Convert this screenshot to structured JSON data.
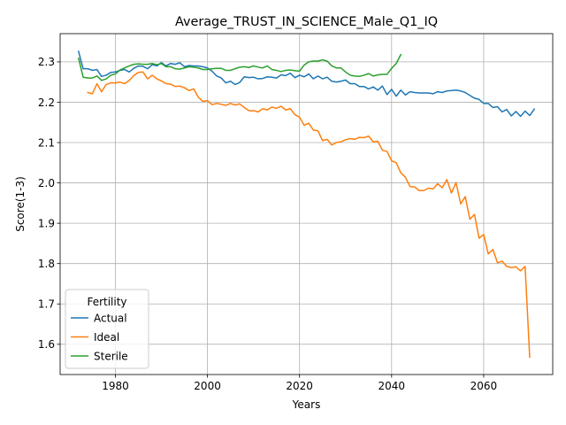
{
  "chart_data": {
    "type": "line",
    "title": "Average_TRUST_IN_SCIENCE_Male_Q1_IQ",
    "xlabel": "Years",
    "ylabel": "Score(1-3)",
    "xlim": [
      1968,
      2075
    ],
    "ylim": [
      1.525,
      2.37
    ],
    "xticks": [
      1980,
      2000,
      2020,
      2040,
      2060
    ],
    "yticks": [
      1.6,
      1.7,
      1.8,
      1.9,
      2.0,
      2.1,
      2.2,
      2.3
    ],
    "grid": true,
    "legend": {
      "title": "Fertility",
      "placement": "lower-left"
    },
    "series": [
      {
        "name": "Actual",
        "color": "#1f77b4",
        "points": [
          [
            1972,
            2.326
          ],
          [
            1973,
            2.283
          ],
          [
            1974,
            2.283
          ],
          [
            1975,
            2.279
          ],
          [
            1976,
            2.281
          ],
          [
            1977,
            2.264
          ],
          [
            1978,
            2.267
          ],
          [
            1979,
            2.274
          ],
          [
            1980,
            2.275
          ],
          [
            1981,
            2.279
          ],
          [
            1982,
            2.281
          ],
          [
            1983,
            2.275
          ],
          [
            1984,
            2.284
          ],
          [
            1985,
            2.29
          ],
          [
            1986,
            2.289
          ],
          [
            1987,
            2.283
          ],
          [
            1988,
            2.293
          ],
          [
            1989,
            2.29
          ],
          [
            1990,
            2.298
          ],
          [
            1991,
            2.29
          ],
          [
            1992,
            2.296
          ],
          [
            1993,
            2.294
          ],
          [
            1994,
            2.298
          ],
          [
            1995,
            2.288
          ],
          [
            1996,
            2.291
          ],
          [
            1997,
            2.29
          ],
          [
            1998,
            2.29
          ],
          [
            1999,
            2.288
          ],
          [
            2000,
            2.285
          ],
          [
            2001,
            2.277
          ],
          [
            2002,
            2.265
          ],
          [
            2003,
            2.26
          ],
          [
            2004,
            2.248
          ],
          [
            2005,
            2.252
          ],
          [
            2006,
            2.244
          ],
          [
            2007,
            2.249
          ],
          [
            2008,
            2.263
          ],
          [
            2009,
            2.261
          ],
          [
            2010,
            2.262
          ],
          [
            2011,
            2.258
          ],
          [
            2012,
            2.259
          ],
          [
            2013,
            2.263
          ],
          [
            2014,
            2.262
          ],
          [
            2015,
            2.26
          ],
          [
            2016,
            2.268
          ],
          [
            2017,
            2.266
          ],
          [
            2018,
            2.272
          ],
          [
            2019,
            2.261
          ],
          [
            2020,
            2.267
          ],
          [
            2021,
            2.263
          ],
          [
            2022,
            2.27
          ],
          [
            2023,
            2.258
          ],
          [
            2024,
            2.265
          ],
          [
            2025,
            2.258
          ],
          [
            2026,
            2.262
          ],
          [
            2027,
            2.252
          ],
          [
            2028,
            2.25
          ],
          [
            2029,
            2.252
          ],
          [
            2030,
            2.255
          ],
          [
            2031,
            2.246
          ],
          [
            2032,
            2.246
          ],
          [
            2033,
            2.239
          ],
          [
            2034,
            2.239
          ],
          [
            2035,
            2.233
          ],
          [
            2036,
            2.238
          ],
          [
            2037,
            2.23
          ],
          [
            2038,
            2.24
          ],
          [
            2039,
            2.219
          ],
          [
            2040,
            2.232
          ],
          [
            2041,
            2.215
          ],
          [
            2042,
            2.23
          ],
          [
            2043,
            2.218
          ],
          [
            2044,
            2.226
          ],
          [
            2045,
            2.224
          ],
          [
            2046,
            2.223
          ],
          [
            2047,
            2.223
          ],
          [
            2048,
            2.223
          ],
          [
            2049,
            2.221
          ],
          [
            2050,
            2.226
          ],
          [
            2051,
            2.224
          ],
          [
            2052,
            2.228
          ],
          [
            2053,
            2.229
          ],
          [
            2054,
            2.23
          ],
          [
            2055,
            2.228
          ],
          [
            2056,
            2.224
          ],
          [
            2057,
            2.217
          ],
          [
            2058,
            2.21
          ],
          [
            2059,
            2.207
          ],
          [
            2060,
            2.197
          ],
          [
            2061,
            2.197
          ],
          [
            2062,
            2.187
          ],
          [
            2063,
            2.189
          ],
          [
            2064,
            2.176
          ],
          [
            2065,
            2.182
          ],
          [
            2066,
            2.166
          ],
          [
            2067,
            2.177
          ],
          [
            2068,
            2.165
          ],
          [
            2069,
            2.178
          ],
          [
            2070,
            2.167
          ],
          [
            2071,
            2.183
          ]
        ]
      },
      {
        "name": "Ideal",
        "color": "#ff7f0e",
        "points": [
          [
            1974,
            2.224
          ],
          [
            1975,
            2.221
          ],
          [
            1976,
            2.246
          ],
          [
            1977,
            2.226
          ],
          [
            1978,
            2.244
          ],
          [
            1979,
            2.248
          ],
          [
            1980,
            2.248
          ],
          [
            1981,
            2.25
          ],
          [
            1982,
            2.246
          ],
          [
            1983,
            2.254
          ],
          [
            1984,
            2.266
          ],
          [
            1985,
            2.274
          ],
          [
            1986,
            2.275
          ],
          [
            1987,
            2.258
          ],
          [
            1988,
            2.267
          ],
          [
            1989,
            2.258
          ],
          [
            1990,
            2.253
          ],
          [
            1991,
            2.246
          ],
          [
            1992,
            2.245
          ],
          [
            1993,
            2.239
          ],
          [
            1994,
            2.24
          ],
          [
            1995,
            2.236
          ],
          [
            1996,
            2.229
          ],
          [
            1997,
            2.233
          ],
          [
            1998,
            2.213
          ],
          [
            1999,
            2.202
          ],
          [
            2000,
            2.204
          ],
          [
            2001,
            2.194
          ],
          [
            2002,
            2.197
          ],
          [
            2003,
            2.195
          ],
          [
            2004,
            2.192
          ],
          [
            2005,
            2.197
          ],
          [
            2006,
            2.193
          ],
          [
            2007,
            2.196
          ],
          [
            2008,
            2.187
          ],
          [
            2009,
            2.179
          ],
          [
            2010,
            2.179
          ],
          [
            2011,
            2.176
          ],
          [
            2012,
            2.184
          ],
          [
            2013,
            2.181
          ],
          [
            2014,
            2.188
          ],
          [
            2015,
            2.185
          ],
          [
            2016,
            2.19
          ],
          [
            2017,
            2.181
          ],
          [
            2018,
            2.184
          ],
          [
            2019,
            2.169
          ],
          [
            2020,
            2.163
          ],
          [
            2021,
            2.143
          ],
          [
            2022,
            2.148
          ],
          [
            2023,
            2.131
          ],
          [
            2024,
            2.129
          ],
          [
            2025,
            2.105
          ],
          [
            2026,
            2.108
          ],
          [
            2027,
            2.094
          ],
          [
            2028,
            2.1
          ],
          [
            2029,
            2.102
          ],
          [
            2030,
            2.107
          ],
          [
            2031,
            2.11
          ],
          [
            2032,
            2.108
          ],
          [
            2033,
            2.113
          ],
          [
            2034,
            2.112
          ],
          [
            2035,
            2.116
          ],
          [
            2036,
            2.102
          ],
          [
            2037,
            2.103
          ],
          [
            2038,
            2.081
          ],
          [
            2039,
            2.078
          ],
          [
            2040,
            2.055
          ],
          [
            2041,
            2.05
          ],
          [
            2042,
            2.025
          ],
          [
            2043,
            2.014
          ],
          [
            2044,
            1.991
          ],
          [
            2045,
            1.99
          ],
          [
            2046,
            1.981
          ],
          [
            2047,
            1.981
          ],
          [
            2048,
            1.987
          ],
          [
            2049,
            1.985
          ],
          [
            2050,
            1.998
          ],
          [
            2051,
            1.988
          ],
          [
            2052,
            2.008
          ],
          [
            2053,
            1.975
          ],
          [
            2054,
            2.001
          ],
          [
            2055,
            1.948
          ],
          [
            2056,
            1.966
          ],
          [
            2057,
            1.91
          ],
          [
            2058,
            1.922
          ],
          [
            2059,
            1.863
          ],
          [
            2060,
            1.872
          ],
          [
            2061,
            1.824
          ],
          [
            2062,
            1.835
          ],
          [
            2063,
            1.802
          ],
          [
            2064,
            1.806
          ],
          [
            2065,
            1.793
          ],
          [
            2066,
            1.79
          ],
          [
            2067,
            1.792
          ],
          [
            2068,
            1.782
          ],
          [
            2069,
            1.793
          ],
          [
            2070,
            1.568
          ]
        ]
      },
      {
        "name": "Sterile",
        "color": "#2ca02c",
        "points": [
          [
            1972,
            2.309
          ],
          [
            1973,
            2.262
          ],
          [
            1974,
            2.26
          ],
          [
            1975,
            2.26
          ],
          [
            1976,
            2.265
          ],
          [
            1977,
            2.254
          ],
          [
            1978,
            2.258
          ],
          [
            1979,
            2.267
          ],
          [
            1980,
            2.27
          ],
          [
            1981,
            2.28
          ],
          [
            1982,
            2.285
          ],
          [
            1983,
            2.29
          ],
          [
            1984,
            2.294
          ],
          [
            1985,
            2.295
          ],
          [
            1986,
            2.294
          ],
          [
            1987,
            2.294
          ],
          [
            1988,
            2.296
          ],
          [
            1989,
            2.293
          ],
          [
            1990,
            2.296
          ],
          [
            1991,
            2.288
          ],
          [
            1992,
            2.288
          ],
          [
            1993,
            2.283
          ],
          [
            1994,
            2.282
          ],
          [
            1995,
            2.285
          ],
          [
            1996,
            2.288
          ],
          [
            1997,
            2.287
          ],
          [
            1998,
            2.285
          ],
          [
            1999,
            2.281
          ],
          [
            2000,
            2.281
          ],
          [
            2001,
            2.283
          ],
          [
            2002,
            2.284
          ],
          [
            2003,
            2.284
          ],
          [
            2004,
            2.279
          ],
          [
            2005,
            2.279
          ],
          [
            2006,
            2.283
          ],
          [
            2007,
            2.287
          ],
          [
            2008,
            2.288
          ],
          [
            2009,
            2.286
          ],
          [
            2010,
            2.29
          ],
          [
            2011,
            2.287
          ],
          [
            2012,
            2.285
          ],
          [
            2013,
            2.29
          ],
          [
            2014,
            2.281
          ],
          [
            2015,
            2.279
          ],
          [
            2016,
            2.276
          ],
          [
            2017,
            2.279
          ],
          [
            2018,
            2.28
          ],
          [
            2019,
            2.278
          ],
          [
            2020,
            2.277
          ],
          [
            2021,
            2.292
          ],
          [
            2022,
            2.3
          ],
          [
            2023,
            2.302
          ],
          [
            2024,
            2.302
          ],
          [
            2025,
            2.305
          ],
          [
            2026,
            2.302
          ],
          [
            2027,
            2.29
          ],
          [
            2028,
            2.285
          ],
          [
            2029,
            2.285
          ],
          [
            2030,
            2.275
          ],
          [
            2031,
            2.267
          ],
          [
            2032,
            2.265
          ],
          [
            2033,
            2.264
          ],
          [
            2034,
            2.267
          ],
          [
            2035,
            2.271
          ],
          [
            2036,
            2.265
          ],
          [
            2037,
            2.268
          ],
          [
            2038,
            2.269
          ],
          [
            2039,
            2.269
          ],
          [
            2040,
            2.284
          ],
          [
            2041,
            2.296
          ],
          [
            2042,
            2.318
          ]
        ]
      }
    ]
  }
}
